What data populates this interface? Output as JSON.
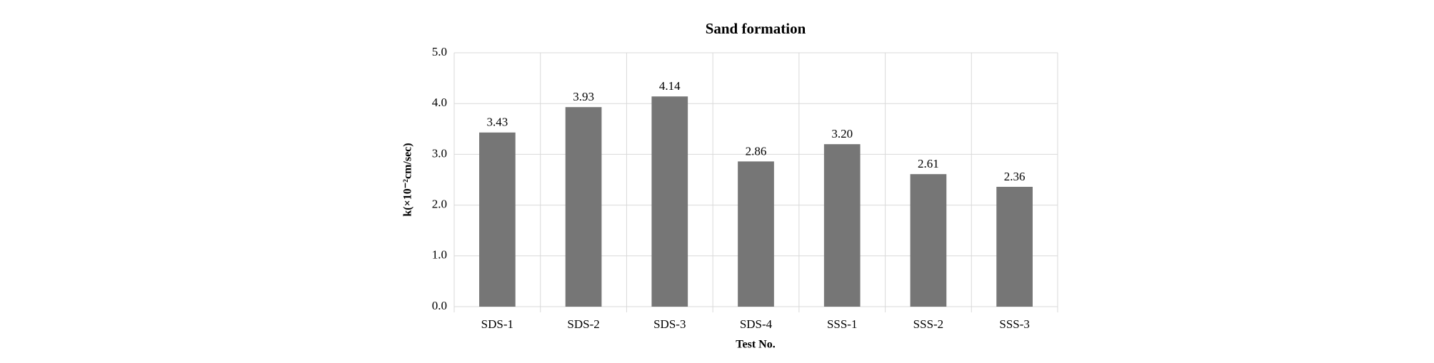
{
  "chart_data": {
    "type": "bar",
    "title": "Sand formation",
    "x_label": "Test No.",
    "y_label": "k(×10⁻²cm/sec)",
    "categories": [
      "SDS-1",
      "SDS-2",
      "SDS-3",
      "SDS-4",
      "SSS-1",
      "SSS-2",
      "SSS-3"
    ],
    "values": [
      3.43,
      3.93,
      4.14,
      2.86,
      3.2,
      2.61,
      2.36
    ],
    "value_labels": [
      "3.43",
      "3.93",
      "4.14",
      "2.86",
      "3.20",
      "2.61",
      "2.36"
    ],
    "color": "#767676",
    "ylim": [
      0,
      5
    ],
    "yticks": [
      {
        "value": 0,
        "label": "0.0"
      },
      {
        "value": 1,
        "label": "1.0"
      },
      {
        "value": 2,
        "label": "2.0"
      },
      {
        "value": 3,
        "label": "3.0"
      },
      {
        "value": 4,
        "label": "4.0"
      },
      {
        "value": 5,
        "label": "5.0"
      }
    ],
    "grid": true
  }
}
